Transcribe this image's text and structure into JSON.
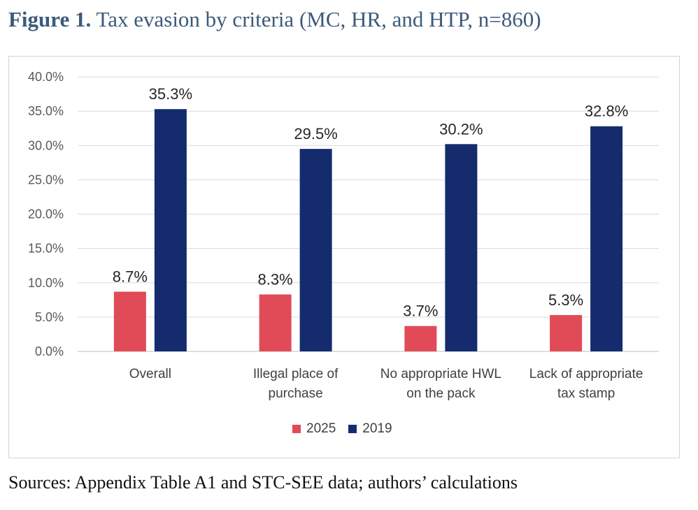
{
  "figure": {
    "label": "Figure 1.",
    "title": "Tax evasion by criteria (MC, HR, and HTP, n=860)"
  },
  "sources": "Sources: Appendix Table A1 and STC-SEE data; authors’ calculations",
  "colors": {
    "series_2025": "#e04b57",
    "series_2019": "#142c6e",
    "grid": "#d9d9d9"
  },
  "chart_data": {
    "type": "bar",
    "title": "Tax evasion by criteria (MC, HR, and HTP, n=860)",
    "categories": [
      [
        "Overall"
      ],
      [
        "Illegal place of",
        "purchase"
      ],
      [
        "No appropriate HWL",
        "on the pack"
      ],
      [
        "Lack of appropriate",
        "tax stamp"
      ]
    ],
    "series": [
      {
        "name": "2025",
        "values": [
          8.7,
          8.3,
          3.7,
          5.3
        ],
        "labels": [
          "8.7%",
          "8.3%",
          "3.7%",
          "5.3%"
        ]
      },
      {
        "name": "2019",
        "values": [
          35.3,
          29.5,
          30.2,
          32.8
        ],
        "labels": [
          "35.3%",
          "29.5%",
          "30.2%",
          "32.8%"
        ]
      }
    ],
    "ylim": [
      0,
      40
    ],
    "yticks": [
      "0.0%",
      "5.0%",
      "10.0%",
      "15.0%",
      "20.0%",
      "25.0%",
      "30.0%",
      "35.0%",
      "40.0%"
    ],
    "grid": true,
    "legend": "bottom-center",
    "xlabel": "",
    "ylabel": ""
  }
}
